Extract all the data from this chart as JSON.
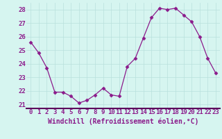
{
  "x": [
    0,
    1,
    2,
    3,
    4,
    5,
    6,
    7,
    8,
    9,
    10,
    11,
    12,
    13,
    14,
    15,
    16,
    17,
    18,
    19,
    20,
    21,
    22,
    23
  ],
  "y": [
    25.6,
    24.8,
    23.7,
    21.9,
    21.9,
    21.6,
    21.1,
    21.3,
    21.7,
    22.2,
    21.7,
    21.6,
    23.8,
    24.4,
    25.9,
    27.4,
    28.1,
    28.0,
    28.1,
    27.6,
    27.1,
    26.0,
    24.4,
    23.3
  ],
  "line_color": "#8b1a8b",
  "marker": "D",
  "marker_size": 2.5,
  "bg_color": "#d6f5f0",
  "grid_color": "#b8e0dc",
  "xlabel": "Windchill (Refroidissement éolien,°C)",
  "ylim": [
    20.7,
    28.5
  ],
  "xlim": [
    -0.5,
    23.5
  ],
  "yticks": [
    21,
    22,
    23,
    24,
    25,
    26,
    27,
    28
  ],
  "xticks": [
    0,
    1,
    2,
    3,
    4,
    5,
    6,
    7,
    8,
    9,
    10,
    11,
    12,
    13,
    14,
    15,
    16,
    17,
    18,
    19,
    20,
    21,
    22,
    23
  ],
  "xlabel_fontsize": 7,
  "tick_fontsize": 6.5,
  "tick_color": "#8b1a8b",
  "spine_color": "#8b1a8b",
  "axisline_color": "#5c0a5c"
}
